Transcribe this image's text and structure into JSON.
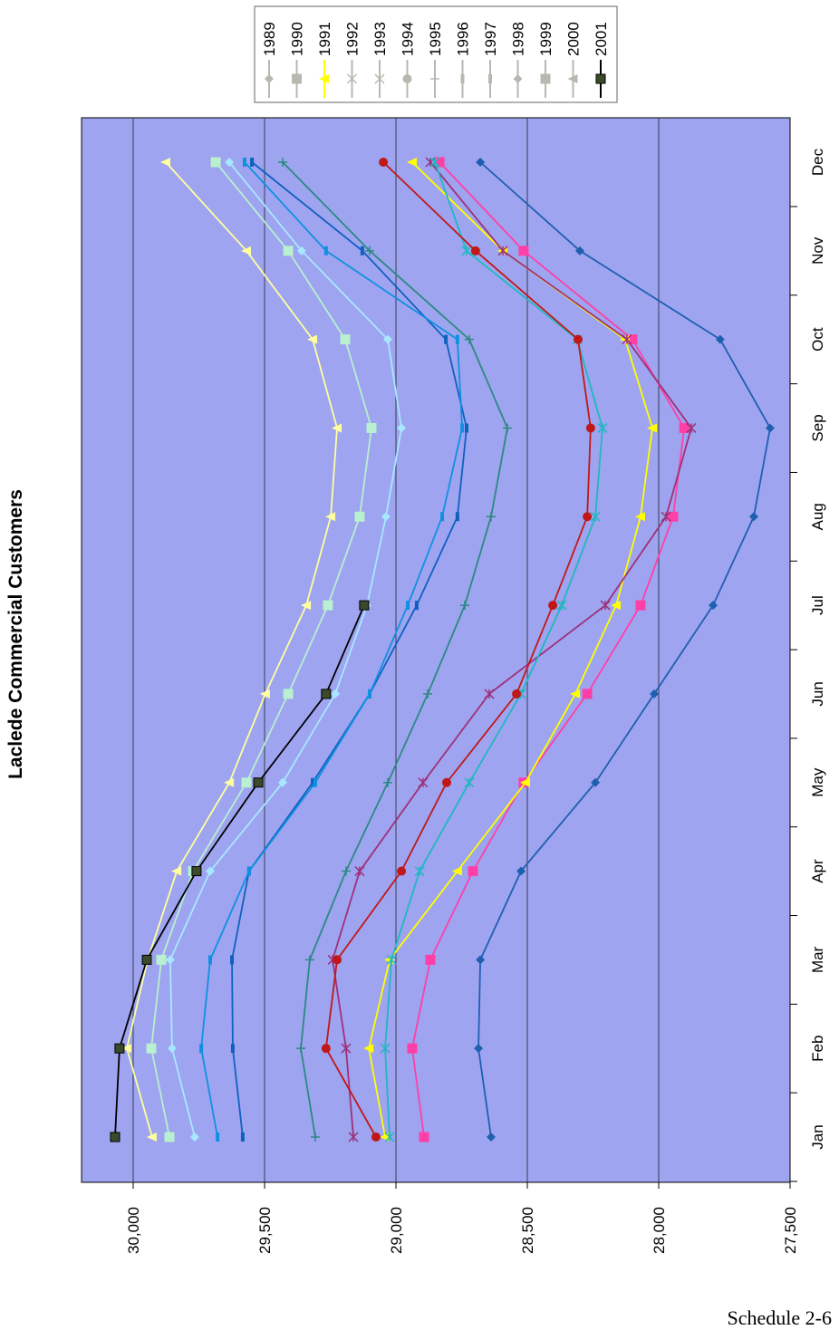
{
  "chart_data": {
    "type": "line",
    "title": "Laclede Commercial Customers",
    "footer": "Schedule 2-6",
    "orientation": "rotated 90 degrees counter-clockwise",
    "categories": [
      "Jan",
      "Feb",
      "Mar",
      "Apr",
      "May",
      "Jun",
      "Jul",
      "Aug",
      "Sep",
      "Oct",
      "Nov",
      "Dec"
    ],
    "yticks": [
      "30,000",
      "29,500",
      "29,000",
      "28,500",
      "28,000",
      "27,500"
    ],
    "ytick_values": [
      30000,
      29500,
      29000,
      28500,
      28000,
      27500
    ],
    "ylim": [
      27500,
      30200
    ],
    "grid": true,
    "legend_position": "top",
    "series": [
      {
        "name": "1989",
        "color": "#1f5fb0",
        "marker": "diamond",
        "values": [
          28638,
          28686,
          28679,
          28524,
          28241,
          28017,
          27793,
          27638,
          27576,
          27766,
          28300,
          28679
        ]
      },
      {
        "name": "1990",
        "color": "#ff3fa8",
        "marker": "square",
        "values": [
          28893,
          28938,
          28869,
          28707,
          28514,
          28272,
          28069,
          27945,
          27903,
          28100,
          28514,
          28834
        ]
      },
      {
        "name": "1991",
        "color": "#ffff00",
        "marker": "triangle",
        "values": [
          29041,
          29103,
          29024,
          28766,
          28507,
          28317,
          28162,
          28069,
          28024,
          28128,
          28593,
          28938
        ]
      },
      {
        "name": "1992",
        "color": "#a0307a",
        "marker": "x",
        "values": [
          29162,
          29190,
          29241,
          29138,
          28897,
          28645,
          28203,
          27972,
          27876,
          28121,
          28593,
          28869
        ]
      },
      {
        "name": "1993",
        "color": "#20b8c0",
        "marker": "x",
        "values": [
          29024,
          29041,
          29017,
          28910,
          28721,
          28524,
          28369,
          28241,
          28214,
          28310,
          28731,
          28852
        ]
      },
      {
        "name": "1994",
        "color": "#c01818",
        "marker": "circle",
        "values": [
          29076,
          29266,
          29224,
          28979,
          28807,
          28541,
          28403,
          28272,
          28259,
          28307,
          28697,
          29048
        ]
      },
      {
        "name": "1995",
        "color": "#2a8a80",
        "marker": "plus",
        "values": [
          29307,
          29362,
          29328,
          29190,
          29031,
          28879,
          28738,
          28638,
          28576,
          28721,
          29100,
          29431
        ]
      },
      {
        "name": "1996",
        "color": "#1060c0",
        "marker": "dash",
        "values": [
          29583,
          29621,
          29624,
          29559,
          29317,
          29100,
          28921,
          28766,
          28731,
          28810,
          29128,
          29548
        ]
      },
      {
        "name": "1997",
        "color": "#1090e0",
        "marker": "dash",
        "values": [
          29679,
          29741,
          29707,
          29559,
          29307,
          29100,
          28955,
          28824,
          28748,
          28766,
          29266,
          29576
        ]
      },
      {
        "name": "1998",
        "color": "#a8e8ff",
        "marker": "diamond",
        "values": [
          29766,
          29852,
          29859,
          29707,
          29431,
          29231,
          29110,
          29038,
          28979,
          29031,
          29359,
          29634
        ]
      },
      {
        "name": "1999",
        "color": "#b8f0d0",
        "marker": "square",
        "values": [
          29862,
          29931,
          29893,
          29772,
          29569,
          29410,
          29259,
          29138,
          29093,
          29193,
          29410,
          29686
        ]
      },
      {
        "name": "2000",
        "color": "#ffffa0",
        "marker": "triangle",
        "values": [
          29928,
          30024,
          29945,
          29834,
          29634,
          29497,
          29341,
          29248,
          29224,
          29317,
          29569,
          29876
        ]
      },
      {
        "name": "2001",
        "color": "#000000",
        "marker": "square",
        "values": [
          30069,
          30052,
          29948,
          29759,
          29524,
          29266,
          29121,
          null,
          null,
          null,
          null,
          null
        ]
      }
    ]
  }
}
